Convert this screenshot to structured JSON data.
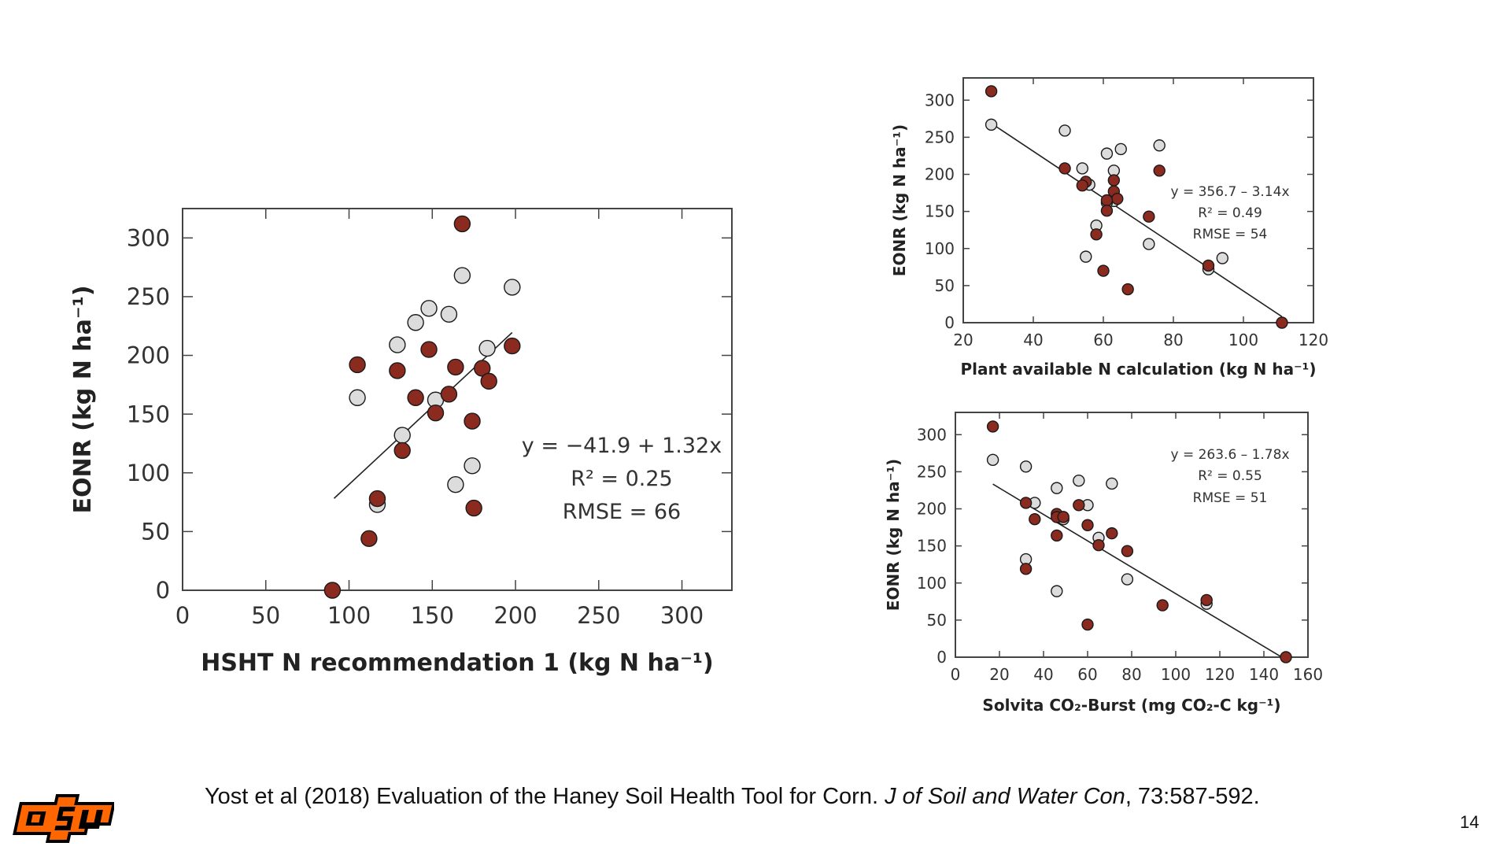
{
  "slide": {
    "citation": {
      "prefix": "Yost et al (2018) Evaluation of the Haney Soil Health Tool for Corn. ",
      "journal": "J of Soil and Water Con",
      "suffix": ", 73:587-592."
    },
    "page_number": "14",
    "logo_text": "OSU",
    "colors": {
      "series_a": "#8b2a1f",
      "series_b": "#dcdcdc",
      "logo_orange": "#ff6600",
      "logo_black": "#000000"
    }
  },
  "chart_data": [
    {
      "id": "hsht",
      "type": "scatter",
      "title": "",
      "xlabel": "HSHT N recommendation 1 (kg N ha⁻¹)",
      "ylabel": "EONR (kg N ha⁻¹)",
      "xlim": [
        0,
        330
      ],
      "ylim": [
        0,
        325
      ],
      "xticks": [
        0,
        50,
        100,
        150,
        200,
        250,
        300
      ],
      "yticks": [
        0,
        50,
        100,
        150,
        200,
        250,
        300
      ],
      "grid": false,
      "legend": "none",
      "annotation": [
        "y = −41.9 + 1.32x",
        "R² = 0.25",
        "RMSE = 66"
      ],
      "fit": {
        "intercept": -41.9,
        "slope": 1.32,
        "x_range": [
          91,
          198
        ]
      },
      "series": [
        {
          "name": "red",
          "color": "#8b2a1f",
          "points": [
            [
              168,
              312
            ],
            [
              105,
              192
            ],
            [
              129,
              187
            ],
            [
              148,
              205
            ],
            [
              164,
              190
            ],
            [
              180,
              189
            ],
            [
              184,
              178
            ],
            [
              198,
              208
            ],
            [
              140,
              164
            ],
            [
              160,
              167
            ],
            [
              152,
              151
            ],
            [
              174,
              144
            ],
            [
              132,
              119
            ],
            [
              117,
              78
            ],
            [
              175,
              70
            ],
            [
              112,
              44
            ],
            [
              90,
              0
            ]
          ]
        },
        {
          "name": "gray",
          "color": "#dcdcdc",
          "points": [
            [
              168,
              268
            ],
            [
              198,
              258
            ],
            [
              148,
              240
            ],
            [
              160,
              235
            ],
            [
              140,
              228
            ],
            [
              129,
              209
            ],
            [
              183,
              206
            ],
            [
              105,
              164
            ],
            [
              152,
              162
            ],
            [
              132,
              132
            ],
            [
              174,
              106
            ],
            [
              164,
              90
            ],
            [
              117,
              73
            ]
          ]
        }
      ]
    },
    {
      "id": "pan",
      "type": "scatter",
      "title": "",
      "xlabel": "Plant available N calculation (kg N ha⁻¹)",
      "ylabel": "EONR (kg N ha⁻¹)",
      "xlim": [
        20,
        120
      ],
      "ylim": [
        0,
        330
      ],
      "xticks": [
        20,
        40,
        60,
        80,
        100,
        120
      ],
      "yticks": [
        0,
        50,
        100,
        150,
        200,
        250,
        300
      ],
      "grid": false,
      "legend": "none",
      "annotation": [
        "y = 356.7 – 3.14x",
        "R² = 0.49",
        "RMSE = 54"
      ],
      "fit": {
        "intercept": 356.7,
        "slope": -3.14,
        "x_range": [
          28,
          111
        ]
      },
      "series": [
        {
          "name": "red",
          "color": "#8b2a1f",
          "points": [
            [
              28,
              312
            ],
            [
              49,
              208
            ],
            [
              55,
              190
            ],
            [
              54,
              185
            ],
            [
              63,
              192
            ],
            [
              63,
              177
            ],
            [
              64,
              167
            ],
            [
              61,
              165
            ],
            [
              76,
              205
            ],
            [
              61,
              151
            ],
            [
              73,
              143
            ],
            [
              58,
              119
            ],
            [
              60,
              70
            ],
            [
              67,
              45
            ],
            [
              90,
              77
            ],
            [
              111,
              0
            ]
          ]
        },
        {
          "name": "gray",
          "color": "#dcdcdc",
          "points": [
            [
              28,
              267
            ],
            [
              49,
              259
            ],
            [
              54,
              208
            ],
            [
              56,
              186
            ],
            [
              61,
              228
            ],
            [
              65,
              234
            ],
            [
              63,
              205
            ],
            [
              63,
              164
            ],
            [
              61,
              162
            ],
            [
              58,
              131
            ],
            [
              76,
              239
            ],
            [
              73,
              106
            ],
            [
              55,
              89
            ],
            [
              94,
              87
            ],
            [
              90,
              72
            ]
          ]
        }
      ]
    },
    {
      "id": "solvita",
      "type": "scatter",
      "title": "",
      "xlabel": "Solvita CO₂-Burst (mg CO₂-C kg⁻¹)",
      "ylabel": "EONR (kg N ha⁻¹)",
      "xlim": [
        0,
        160
      ],
      "ylim": [
        0,
        330
      ],
      "xticks": [
        0,
        20,
        40,
        60,
        80,
        100,
        120,
        140,
        160
      ],
      "yticks": [
        0,
        50,
        100,
        150,
        200,
        250,
        300
      ],
      "grid": false,
      "legend": "none",
      "annotation": [
        "y = 263.6 – 1.78x",
        "R² = 0.55",
        "RMSE = 51"
      ],
      "fit": {
        "intercept": 263.6,
        "slope": -1.78,
        "x_range": [
          17,
          148
        ]
      },
      "series": [
        {
          "name": "red",
          "color": "#8b2a1f",
          "points": [
            [
              17,
              311
            ],
            [
              32,
              208
            ],
            [
              36,
              186
            ],
            [
              46,
              193
            ],
            [
              46,
              189
            ],
            [
              49,
              189
            ],
            [
              56,
              205
            ],
            [
              60,
              178
            ],
            [
              46,
              164
            ],
            [
              65,
              151
            ],
            [
              71,
              167
            ],
            [
              78,
              143
            ],
            [
              32,
              119
            ],
            [
              60,
              44
            ],
            [
              94,
              70
            ],
            [
              114,
              77
            ],
            [
              150,
              0
            ]
          ]
        },
        {
          "name": "gray",
          "color": "#dcdcdc",
          "points": [
            [
              17,
              266
            ],
            [
              32,
              257
            ],
            [
              36,
              208
            ],
            [
              46,
              228
            ],
            [
              56,
              238
            ],
            [
              71,
              234
            ],
            [
              60,
              205
            ],
            [
              49,
              186
            ],
            [
              65,
              161
            ],
            [
              32,
              132
            ],
            [
              78,
              105
            ],
            [
              46,
              89
            ],
            [
              114,
              72
            ]
          ]
        }
      ]
    }
  ]
}
